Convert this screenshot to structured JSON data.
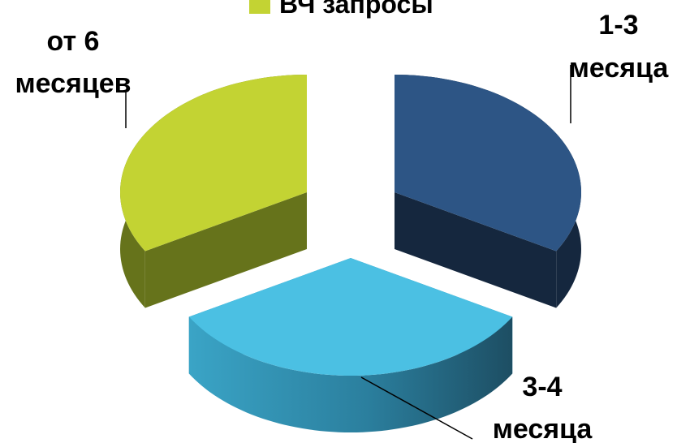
{
  "chart_data": {
    "type": "pie",
    "style": "3d-exploded",
    "series_name": "ВЧ запросы",
    "slices": [
      {
        "label_lines": [
          "1-3",
          "месяца"
        ],
        "value": 33.3,
        "color": "#2d5585",
        "side_color": "#15273e"
      },
      {
        "label_lines": [
          "3-4",
          "месяца"
        ],
        "value": 33.3,
        "color": "#4bc0e3",
        "side_color": "#2b8eae"
      },
      {
        "label_lines": [
          "от 6",
          "месяцев"
        ],
        "value": 33.3,
        "color": "#c3d333",
        "side_color": "#66731b"
      }
    ],
    "legend": {
      "placement": "top",
      "color": "#c3d333"
    }
  }
}
